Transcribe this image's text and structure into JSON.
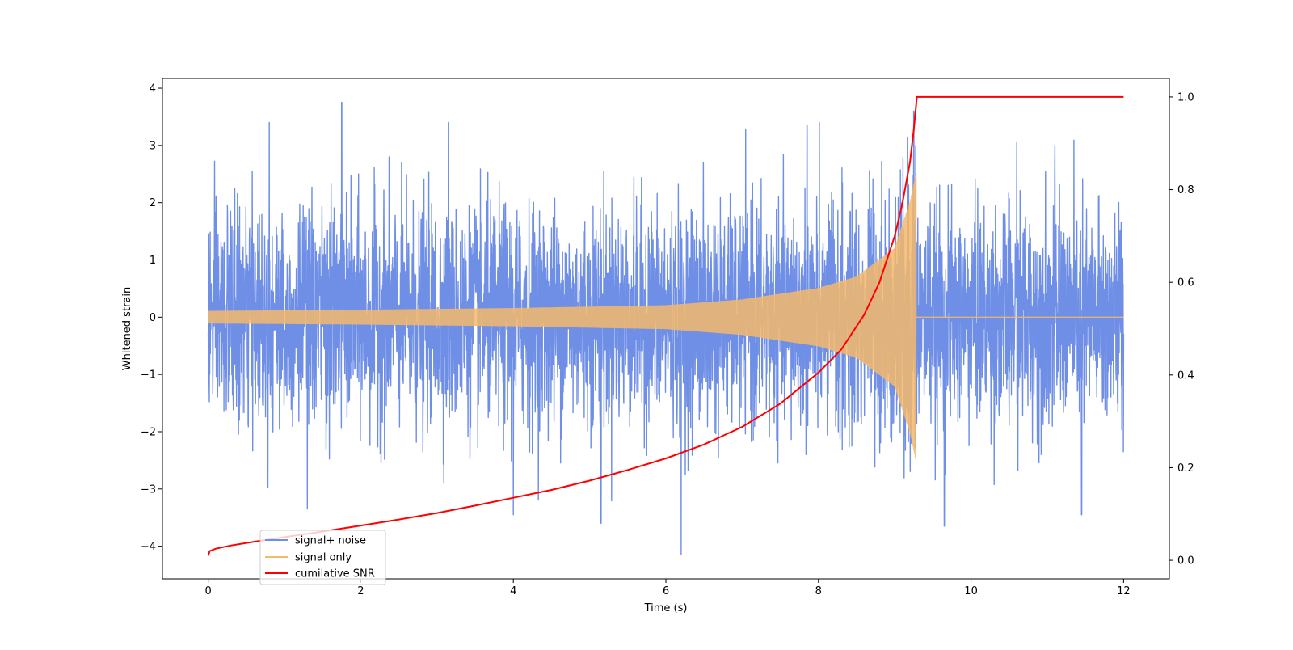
{
  "chart_data": {
    "type": "line",
    "xlabel": "Time (s)",
    "ylabel": "Whitened strain",
    "xlim": [
      -0.6,
      12.6
    ],
    "ylim": [
      -4.57,
      4.17
    ],
    "y2lim": [
      -0.04,
      1.04
    ],
    "xticks": [
      0,
      2,
      4,
      6,
      8,
      10,
      12
    ],
    "xtick_labels": [
      "0",
      "2",
      "4",
      "6",
      "8",
      "10",
      "12"
    ],
    "yticks": [
      -4,
      -3,
      -2,
      -1,
      0,
      1,
      2,
      3,
      4
    ],
    "ytick_labels": [
      "−4",
      "−3",
      "−2",
      "−1",
      "0",
      "1",
      "2",
      "3",
      "4"
    ],
    "y2ticks": [
      0.0,
      0.2,
      0.4,
      0.6,
      0.8,
      1.0
    ],
    "y2tick_labels": [
      "0.0",
      "0.2",
      "0.4",
      "0.6",
      "0.8",
      "1.0"
    ],
    "grid": false,
    "legend_position": "lower-left",
    "series": [
      {
        "name": "signal+ noise",
        "color": "#6f8fe6",
        "axis": "left",
        "description_of_extent": "noise band",
        "x_range": [
          0,
          12
        ],
        "typical_amplitude": 1.3,
        "peaks": [
          {
            "x": 1.75,
            "y": 3.75
          },
          {
            "x": 0.8,
            "y": 3.4
          },
          {
            "x": 3.15,
            "y": 3.4
          },
          {
            "x": 9.25,
            "y": 3.6
          },
          {
            "x": 7.85,
            "y": 3.35
          },
          {
            "x": 6.2,
            "y": -4.15
          },
          {
            "x": 9.65,
            "y": -3.65
          },
          {
            "x": 1.3,
            "y": -3.35
          },
          {
            "x": 5.15,
            "y": -3.6
          },
          {
            "x": 11.45,
            "y": -3.45
          },
          {
            "x": 4.0,
            "y": -3.45
          },
          {
            "x": 10.6,
            "y": 3.05
          },
          {
            "x": 11.1,
            "y": 3.0
          }
        ]
      },
      {
        "name": "signal only",
        "color": "#f5b96a",
        "axis": "left",
        "x_range": [
          0,
          9.28
        ],
        "envelope": [
          [
            0,
            0.1
          ],
          [
            2,
            0.12
          ],
          [
            4,
            0.15
          ],
          [
            6,
            0.2
          ],
          [
            7,
            0.3
          ],
          [
            8,
            0.5
          ],
          [
            8.5,
            0.7
          ],
          [
            9.0,
            1.2
          ],
          [
            9.2,
            2.0
          ],
          [
            9.28,
            2.5
          ]
        ],
        "after_merger": 0.0
      },
      {
        "name": "cumilative SNR",
        "color": "#ff0000",
        "axis": "right",
        "x": [
          0,
          0.02,
          0.1,
          0.3,
          0.6,
          1,
          1.5,
          2,
          2.5,
          3,
          3.5,
          4,
          4.5,
          5,
          5.5,
          6,
          6.5,
          7,
          7.5,
          8,
          8.3,
          8.6,
          8.8,
          9.0,
          9.1,
          9.2,
          9.25,
          9.29,
          10,
          11,
          12
        ],
        "values": [
          0.01,
          0.02,
          0.025,
          0.032,
          0.04,
          0.05,
          0.062,
          0.075,
          0.088,
          0.102,
          0.118,
          0.135,
          0.152,
          0.172,
          0.195,
          0.22,
          0.25,
          0.288,
          0.338,
          0.405,
          0.455,
          0.53,
          0.6,
          0.7,
          0.77,
          0.86,
          0.93,
          1.0,
          1.0,
          1.0,
          1.0
        ]
      }
    ]
  }
}
